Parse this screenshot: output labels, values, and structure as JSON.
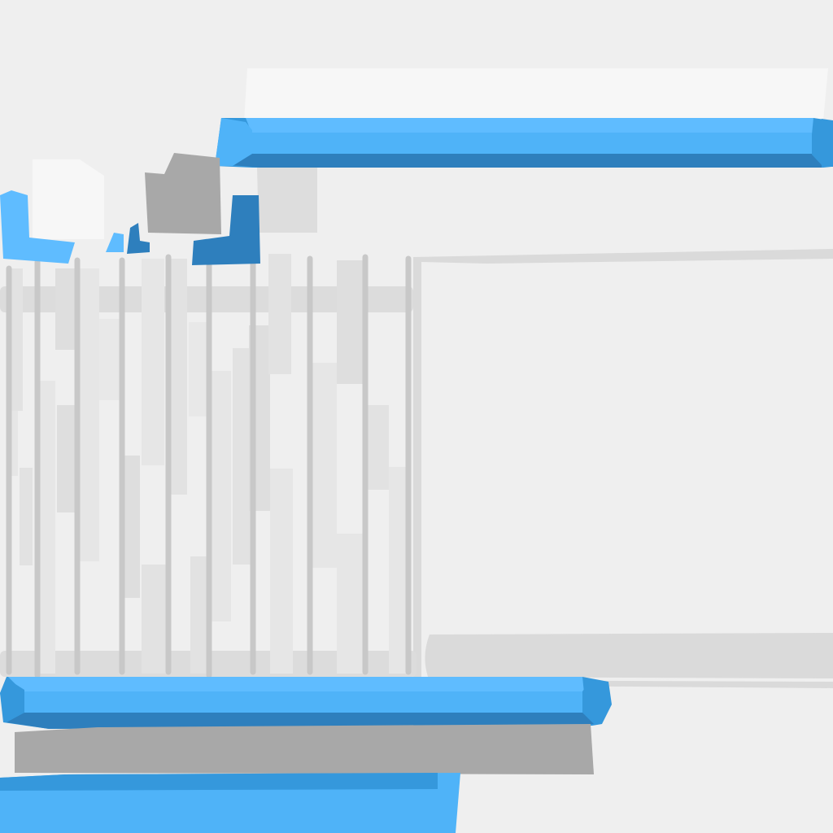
{
  "scene": {
    "name": "isometric-block-platform-scene",
    "text_labels": []
  },
  "colors": {
    "background": "#efefef",
    "platform_blue_top": "#5fbcff",
    "platform_blue_face": "#4fb3f8",
    "platform_blue_side": "#3598dc",
    "platform_blue_shadow": "#2e7fbd",
    "stone_gray": "#a8a8a8",
    "light_block": "#f7f7f7",
    "fence_post": "#c9c9c9",
    "fence_rail": "#dcdcdc",
    "fence_panel": "#e6e6e6",
    "window_frame": "#dadada"
  },
  "objects": [
    {
      "name": "upper-blue-platform",
      "kind": "platform"
    },
    {
      "name": "upper-light-slab",
      "kind": "slab"
    },
    {
      "name": "lower-blue-platform",
      "kind": "platform"
    },
    {
      "name": "gray-stone-slab",
      "kind": "slab"
    },
    {
      "name": "bottom-blue-block",
      "kind": "platform"
    },
    {
      "name": "fence-cage",
      "kind": "fence"
    },
    {
      "name": "window-frame",
      "kind": "frame"
    },
    {
      "name": "window-sill",
      "kind": "ledge"
    },
    {
      "name": "light-cube",
      "kind": "block"
    },
    {
      "name": "gray-cube",
      "kind": "block"
    },
    {
      "name": "blue-l-piece-left",
      "kind": "debris"
    },
    {
      "name": "blue-l-piece-right",
      "kind": "debris"
    },
    {
      "name": "small-blue-shard-a",
      "kind": "debris"
    },
    {
      "name": "small-blue-shard-b",
      "kind": "debris"
    },
    {
      "name": "faded-block",
      "kind": "block"
    }
  ]
}
